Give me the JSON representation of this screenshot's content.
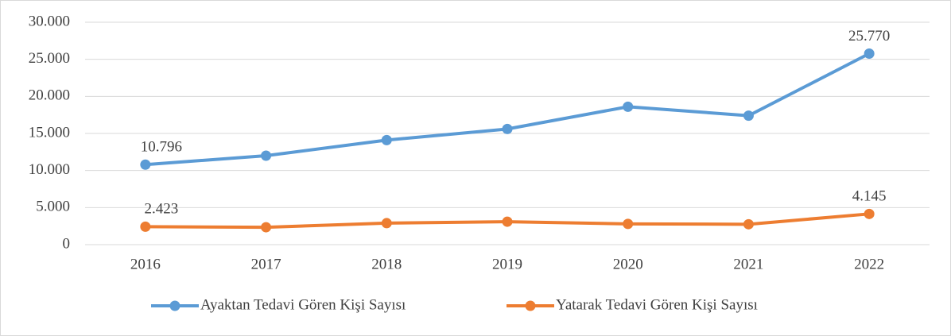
{
  "chart_data": {
    "type": "line",
    "categories": [
      "2016",
      "2017",
      "2018",
      "2019",
      "2020",
      "2021",
      "2022"
    ],
    "series": [
      {
        "name": "Ayaktan Tedavi Gören Kişi Sayısı",
        "color": "#5b9bd5",
        "values": [
          10796,
          12000,
          14100,
          15600,
          18600,
          17400,
          25770
        ],
        "value_labels": [
          "10.796",
          null,
          null,
          null,
          null,
          null,
          "25.770"
        ]
      },
      {
        "name": "Yatarak Tedavi Gören Kişi Sayısı",
        "color": "#ed7d31",
        "values": [
          2423,
          2350,
          2900,
          3100,
          2800,
          2750,
          4145
        ],
        "value_labels": [
          "2.423",
          null,
          null,
          null,
          null,
          null,
          "4.145"
        ]
      }
    ],
    "ylim": [
      0,
      30000
    ],
    "yticks": [
      0,
      {
        "value": 5000,
        "label": "5.000"
      },
      {
        "value": 10000,
        "label": "10.000"
      },
      {
        "value": 15000,
        "label": "15.000"
      },
      {
        "value": 20000,
        "label": "20.000"
      },
      {
        "value": 25000,
        "label": "25.000"
      },
      {
        "value": 30000,
        "label": "30.000"
      }
    ],
    "grid": true,
    "legend": "bottom"
  }
}
